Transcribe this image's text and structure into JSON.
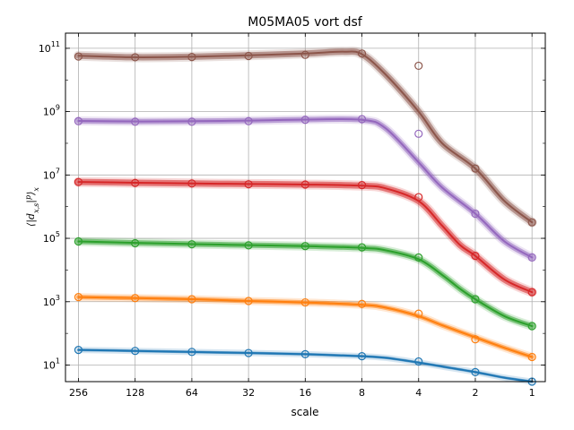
{
  "chart_data": {
    "type": "line",
    "title": "M05MA05 vort dsf",
    "xlabel": "scale",
    "ylabel": "⟨|d_{x,s}|^p⟩_x",
    "x_scale": "log2",
    "y_scale": "log10",
    "x_reversed": true,
    "x_ticks": [
      256,
      128,
      64,
      32,
      16,
      8,
      4,
      2,
      1
    ],
    "x_tick_labels": [
      "256",
      "128",
      "64",
      "32",
      "16",
      "8",
      "4",
      "2",
      "1"
    ],
    "y_ticks": [
      10.0,
      1000.0,
      100000.0,
      10000000.0,
      1000000000.0,
      100000000000.0
    ],
    "y_tick_labels": [
      "10",
      "10",
      "10",
      "10",
      "10",
      "10"
    ],
    "y_tick_exponents": [
      "1",
      "3",
      "5",
      "7",
      "9",
      "11"
    ],
    "ylim": [
      3.0,
      300000000000.0
    ],
    "xlim": [
      300,
      0.85
    ],
    "grid": true,
    "series": [
      {
        "color": "#1f77b4",
        "points": [
          [
            256,
            30
          ],
          [
            128,
            28
          ],
          [
            64,
            26
          ],
          [
            32,
            24
          ],
          [
            16,
            22
          ],
          [
            8,
            19
          ],
          [
            4,
            13
          ],
          [
            2,
            6
          ],
          [
            1,
            3
          ]
        ],
        "curve": [
          [
            256,
            30
          ],
          [
            128,
            28
          ],
          [
            64,
            26
          ],
          [
            32,
            24
          ],
          [
            16,
            22
          ],
          [
            8,
            19
          ],
          [
            6,
            17
          ],
          [
            4,
            12
          ],
          [
            3,
            9
          ],
          [
            2,
            6
          ],
          [
            1.4,
            4
          ],
          [
            1,
            3
          ]
        ]
      },
      {
        "color": "#ff7f0e",
        "points": [
          [
            256,
            1400
          ],
          [
            128,
            1300
          ],
          [
            64,
            1200
          ],
          [
            32,
            1050
          ],
          [
            16,
            950
          ],
          [
            8,
            850
          ],
          [
            4,
            420
          ],
          [
            2,
            65
          ],
          [
            1,
            18
          ]
        ],
        "curve": [
          [
            256,
            1400
          ],
          [
            128,
            1300
          ],
          [
            64,
            1200
          ],
          [
            32,
            1050
          ],
          [
            16,
            950
          ],
          [
            8,
            800
          ],
          [
            6,
            650
          ],
          [
            4,
            350
          ],
          [
            3,
            180
          ],
          [
            2,
            75
          ],
          [
            1.4,
            35
          ],
          [
            1,
            18
          ]
        ]
      },
      {
        "color": "#2ca02c",
        "points": [
          [
            256,
            80000
          ],
          [
            128,
            70000
          ],
          [
            64,
            65000
          ],
          [
            32,
            60000
          ],
          [
            16,
            57000
          ],
          [
            8,
            52000
          ],
          [
            4,
            25000
          ],
          [
            2,
            1200
          ],
          [
            1,
            170
          ]
        ],
        "curve": [
          [
            256,
            80000
          ],
          [
            128,
            72000
          ],
          [
            64,
            66000
          ],
          [
            32,
            61000
          ],
          [
            16,
            57000
          ],
          [
            8,
            50000
          ],
          [
            6,
            42000
          ],
          [
            4,
            22000
          ],
          [
            3,
            7000
          ],
          [
            2.4,
            2500
          ],
          [
            2,
            1200
          ],
          [
            1.4,
            350
          ],
          [
            1,
            170
          ]
        ]
      },
      {
        "color": "#d62728",
        "points": [
          [
            256,
            6000000
          ],
          [
            128,
            5600000
          ],
          [
            64,
            5400000
          ],
          [
            32,
            5100000
          ],
          [
            16,
            5000000
          ],
          [
            8,
            4800000
          ],
          [
            4,
            2000000
          ],
          [
            2,
            28000
          ],
          [
            1,
            2000
          ]
        ],
        "curve": [
          [
            256,
            6000000
          ],
          [
            128,
            5700000
          ],
          [
            64,
            5400000
          ],
          [
            32,
            5200000
          ],
          [
            16,
            5000000
          ],
          [
            8,
            4600000
          ],
          [
            6,
            3800000
          ],
          [
            4,
            1500000
          ],
          [
            3,
            250000
          ],
          [
            2.4,
            60000
          ],
          [
            2,
            28000
          ],
          [
            1.4,
            5000
          ],
          [
            1,
            2000
          ]
        ]
      },
      {
        "color": "#9467bd",
        "points": [
          [
            256,
            500000000
          ],
          [
            128,
            480000000
          ],
          [
            64,
            480000000
          ],
          [
            32,
            500000000
          ],
          [
            16,
            550000000
          ],
          [
            8,
            580000000
          ],
          [
            4,
            200000000
          ],
          [
            2,
            600000
          ],
          [
            1,
            25000
          ]
        ],
        "curve": [
          [
            256,
            510000000
          ],
          [
            128,
            490000000
          ],
          [
            64,
            500000000
          ],
          [
            32,
            520000000
          ],
          [
            16,
            560000000
          ],
          [
            8,
            550000000
          ],
          [
            6,
            300000000
          ],
          [
            4,
            25000000
          ],
          [
            3,
            4000000
          ],
          [
            2,
            600000
          ],
          [
            1.4,
            80000
          ],
          [
            1,
            25000
          ]
        ]
      },
      {
        "color": "#8c564b",
        "points": [
          [
            256,
            55000000000
          ],
          [
            128,
            52000000000
          ],
          [
            64,
            53000000000
          ],
          [
            32,
            57000000000
          ],
          [
            16,
            62000000000
          ],
          [
            8,
            68000000000
          ],
          [
            4,
            28000000000
          ],
          [
            2,
            16000000
          ],
          [
            1,
            320000
          ]
        ],
        "curve": [
          [
            256,
            58000000000
          ],
          [
            128,
            52000000000
          ],
          [
            64,
            54000000000
          ],
          [
            32,
            60000000000
          ],
          [
            16,
            68000000000
          ],
          [
            10,
            78000000000
          ],
          [
            8,
            65000000000
          ],
          [
            6,
            15000000000
          ],
          [
            4,
            1000000000
          ],
          [
            3,
            100000000
          ],
          [
            2,
            16000000
          ],
          [
            1.4,
            1500000
          ],
          [
            1,
            320000
          ]
        ]
      }
    ]
  }
}
